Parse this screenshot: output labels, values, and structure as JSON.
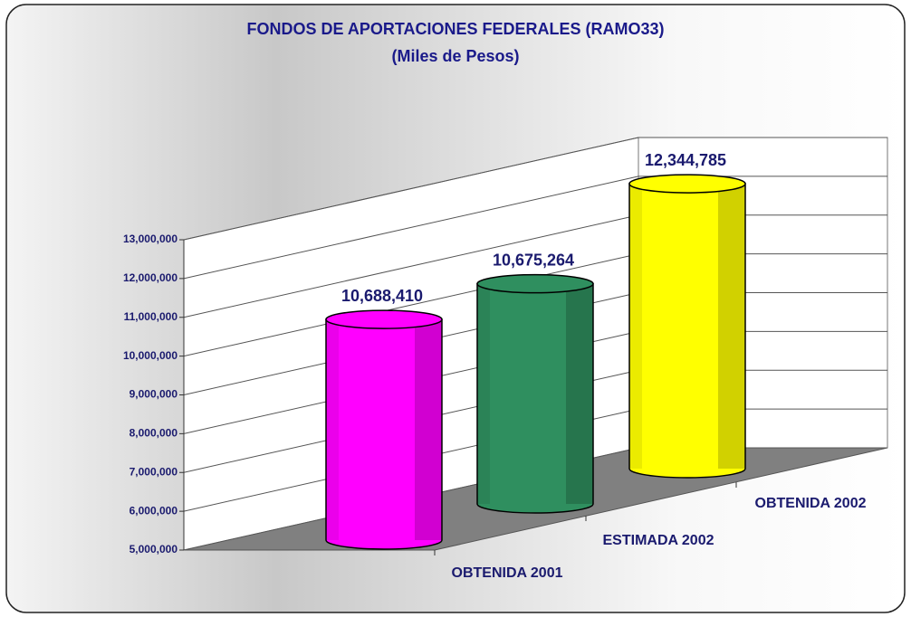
{
  "chart_data": {
    "type": "bar3d",
    "title": "FONDOS DE APORTACIONES FEDERALES (RAMO33)",
    "subtitle": "(Miles de Pesos)",
    "categories": [
      "OBTENIDA 2001",
      "ESTIMADA 2002",
      "OBTENIDA 2002"
    ],
    "values": [
      10688410,
      10675264,
      12344785
    ],
    "value_labels": [
      "10,688,410",
      "10,675,264",
      "12,344,785"
    ],
    "colors": [
      "#ff00ff",
      "#2f8f5f",
      "#ffff00"
    ],
    "ylim": [
      5000000,
      13000000
    ],
    "yticks": [
      {
        "value": 5000000,
        "label": "5,000,000"
      },
      {
        "value": 6000000,
        "label": "6,000,000"
      },
      {
        "value": 7000000,
        "label": "7,000,000"
      },
      {
        "value": 8000000,
        "label": "8,000,000"
      },
      {
        "value": 9000000,
        "label": "9,000,000"
      },
      {
        "value": 10000000,
        "label": "10,000,000"
      },
      {
        "value": 11000000,
        "label": "11,000,000"
      },
      {
        "value": 12000000,
        "label": "12,000,000"
      },
      {
        "value": 13000000,
        "label": "13,000,000"
      }
    ],
    "grid": true
  }
}
